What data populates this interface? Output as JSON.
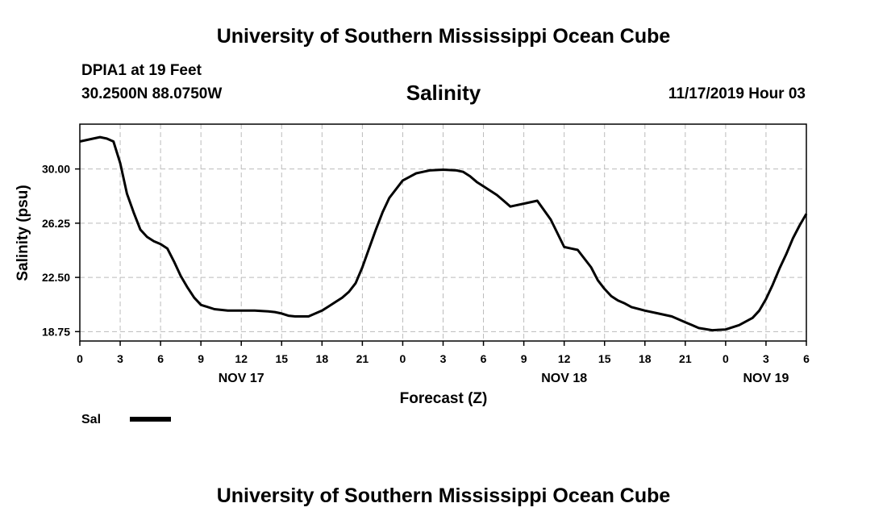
{
  "page": {
    "top_title": "University of Southern Mississippi Ocean Cube",
    "bottom_title": "University of Southern Mississippi Ocean Cube",
    "station": "DPIA1 at 19 Feet",
    "coordinates": "30.2500N 88.0750W",
    "datetime": "11/17/2019 Hour 03"
  },
  "chart_data": {
    "type": "line",
    "title": "Salinity",
    "xlabel": "Forecast (Z)",
    "ylabel": "Salinity (psu)",
    "xlim": [
      0,
      54
    ],
    "ylim": [
      18.1,
      33.1
    ],
    "yticks": [
      18.75,
      22.5,
      26.25,
      30.0
    ],
    "ytick_labels": [
      "18.75",
      "22.50",
      "26.25",
      "30.00"
    ],
    "xticks": [
      0,
      3,
      6,
      9,
      12,
      15,
      18,
      21,
      24,
      27,
      30,
      33,
      36,
      39,
      42,
      45,
      48,
      51,
      54
    ],
    "xtick_labels": [
      "0",
      "3",
      "6",
      "9",
      "12",
      "15",
      "18",
      "21",
      "0",
      "3",
      "6",
      "9",
      "12",
      "15",
      "18",
      "21",
      "0",
      "3",
      "6"
    ],
    "day_labels": [
      {
        "x": 12,
        "label": "NOV 17"
      },
      {
        "x": 36,
        "label": "NOV 18"
      },
      {
        "x": 51,
        "label": "NOV 19"
      }
    ],
    "grid": true,
    "series": [
      {
        "name": "Sal",
        "color": "#000000",
        "x": [
          0,
          1,
          1.5,
          2,
          2.5,
          3,
          3.5,
          4,
          4.5,
          5,
          5.5,
          6,
          6.5,
          7,
          7.5,
          8,
          8.5,
          9,
          10,
          11,
          12,
          13,
          14,
          14.5,
          15,
          15.5,
          16,
          17,
          18,
          18.5,
          19,
          19.5,
          20,
          20.5,
          21,
          21.5,
          22,
          22.5,
          23,
          24,
          25,
          25.5,
          26,
          27,
          28,
          28.5,
          29,
          29.5,
          30,
          30.5,
          31,
          31.5,
          32,
          33,
          34,
          35,
          36,
          36.5,
          37,
          38,
          38.5,
          39,
          39.5,
          40,
          40.5,
          41,
          42,
          43,
          44,
          44.5,
          45,
          45.5,
          46,
          47,
          48,
          49,
          50,
          50.5,
          51,
          51.5,
          52,
          52.5,
          53,
          53.5,
          54
        ],
        "values": [
          31.9,
          32.1,
          32.2,
          32.1,
          31.9,
          30.4,
          28.3,
          27.0,
          25.8,
          25.3,
          25.0,
          24.8,
          24.5,
          23.6,
          22.6,
          21.8,
          21.1,
          20.6,
          20.3,
          20.2,
          20.2,
          20.2,
          20.15,
          20.1,
          20.0,
          19.85,
          19.8,
          19.8,
          20.2,
          20.5,
          20.8,
          21.1,
          21.5,
          22.1,
          23.2,
          24.5,
          25.8,
          27.0,
          28.0,
          29.2,
          29.7,
          29.8,
          29.9,
          29.95,
          29.9,
          29.8,
          29.5,
          29.1,
          28.8,
          28.5,
          28.2,
          27.8,
          27.4,
          27.6,
          27.8,
          26.5,
          24.6,
          24.5,
          24.4,
          23.2,
          22.3,
          21.7,
          21.2,
          20.9,
          20.7,
          20.45,
          20.2,
          20.0,
          19.8,
          19.6,
          19.4,
          19.2,
          19.0,
          18.85,
          18.9,
          19.2,
          19.7,
          20.2,
          21.0,
          22.0,
          23.1,
          24.1,
          25.2,
          26.1,
          26.9
        ]
      }
    ],
    "legend": {
      "placement": "bottom-left",
      "label": "Sal"
    }
  }
}
